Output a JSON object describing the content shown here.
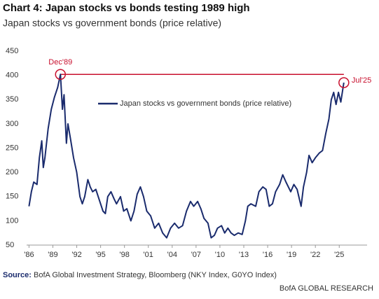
{
  "chart_data": {
    "type": "line",
    "title": "Chart 4: Japan stocks vs bonds testing 1989 high",
    "subtitle": "Japan stocks vs government bonds (price relative)",
    "series": [
      {
        "name": "Japan stocks vs government bonds (price relative)",
        "color": "#1a2b6d",
        "x": [
          1986.0,
          1986.3,
          1986.6,
          1987.0,
          1987.3,
          1987.6,
          1987.8,
          1988.0,
          1988.4,
          1988.8,
          1989.2,
          1989.6,
          1989.95,
          1990.2,
          1990.4,
          1990.7,
          1990.9,
          1991.2,
          1991.6,
          1992.0,
          1992.4,
          1992.7,
          1993.0,
          1993.4,
          1993.7,
          1994.0,
          1994.4,
          1994.8,
          1995.3,
          1995.6,
          1995.9,
          1996.3,
          1996.7,
          1997.0,
          1997.5,
          1997.9,
          1998.3,
          1998.8,
          1999.2,
          1999.6,
          2000.0,
          2000.4,
          2000.8,
          2001.3,
          2001.8,
          2002.3,
          2002.8,
          2003.3,
          2003.8,
          2004.3,
          2004.8,
          2005.3,
          2005.8,
          2006.3,
          2006.7,
          2007.2,
          2007.6,
          2008.0,
          2008.5,
          2008.9,
          2009.3,
          2009.7,
          2010.2,
          2010.6,
          2011.0,
          2011.4,
          2011.8,
          2012.3,
          2012.8,
          2013.2,
          2013.5,
          2013.9,
          2014.5,
          2014.9,
          2015.4,
          2015.8,
          2016.2,
          2016.6,
          2017.0,
          2017.5,
          2017.9,
          2018.3,
          2018.9,
          2019.3,
          2019.7,
          2020.2,
          2020.5,
          2020.9,
          2021.2,
          2021.6,
          2022.0,
          2022.5,
          2022.9,
          2023.3,
          2023.7,
          2024.0,
          2024.3,
          2024.6,
          2024.9,
          2025.2,
          2025.58
        ],
        "values": [
          130,
          160,
          180,
          175,
          230,
          265,
          210,
          230,
          290,
          330,
          355,
          375,
          402,
          330,
          360,
          260,
          300,
          270,
          230,
          200,
          150,
          135,
          150,
          185,
          170,
          160,
          165,
          145,
          120,
          115,
          150,
          160,
          145,
          135,
          150,
          120,
          125,
          100,
          120,
          155,
          170,
          150,
          120,
          110,
          85,
          95,
          75,
          65,
          85,
          95,
          85,
          90,
          120,
          140,
          130,
          140,
          125,
          105,
          95,
          65,
          70,
          85,
          90,
          75,
          85,
          75,
          70,
          75,
          72,
          100,
          130,
          135,
          130,
          160,
          170,
          165,
          130,
          135,
          160,
          175,
          195,
          180,
          160,
          175,
          165,
          130,
          170,
          200,
          235,
          220,
          230,
          240,
          245,
          280,
          310,
          350,
          365,
          340,
          365,
          345,
          385
        ]
      }
    ],
    "xlim": [
      1985.7,
      2028.5
    ],
    "xticks": [
      {
        "value": 1986,
        "label": "'86"
      },
      {
        "value": 1989,
        "label": "'89"
      },
      {
        "value": 1992,
        "label": "'92"
      },
      {
        "value": 1995,
        "label": "'95"
      },
      {
        "value": 1998,
        "label": "'98"
      },
      {
        "value": 2001,
        "label": "'01"
      },
      {
        "value": 2004,
        "label": "'04"
      },
      {
        "value": 2007,
        "label": "'07"
      },
      {
        "value": 2010,
        "label": "'10"
      },
      {
        "value": 2013,
        "label": "'13"
      },
      {
        "value": 2016,
        "label": "'16"
      },
      {
        "value": 2019,
        "label": "'19"
      },
      {
        "value": 2022,
        "label": "'22"
      },
      {
        "value": 2025,
        "label": "'25"
      }
    ],
    "ylim": [
      50,
      450
    ],
    "yticks": [
      50,
      100,
      150,
      200,
      250,
      300,
      350,
      400,
      450
    ],
    "annotations": [
      {
        "label": "Dec'89",
        "x": 1989.95,
        "y": 402,
        "color": "#c8102e"
      },
      {
        "label": "Jul'25",
        "x": 2025.58,
        "y": 385,
        "color": "#c8102e"
      }
    ],
    "source_label": "Source:",
    "source": "BofA Global Investment Strategy, Bloomberg (NKY Index, G0YO Index)",
    "footer": "BofA GLOBAL RESEARCH"
  }
}
